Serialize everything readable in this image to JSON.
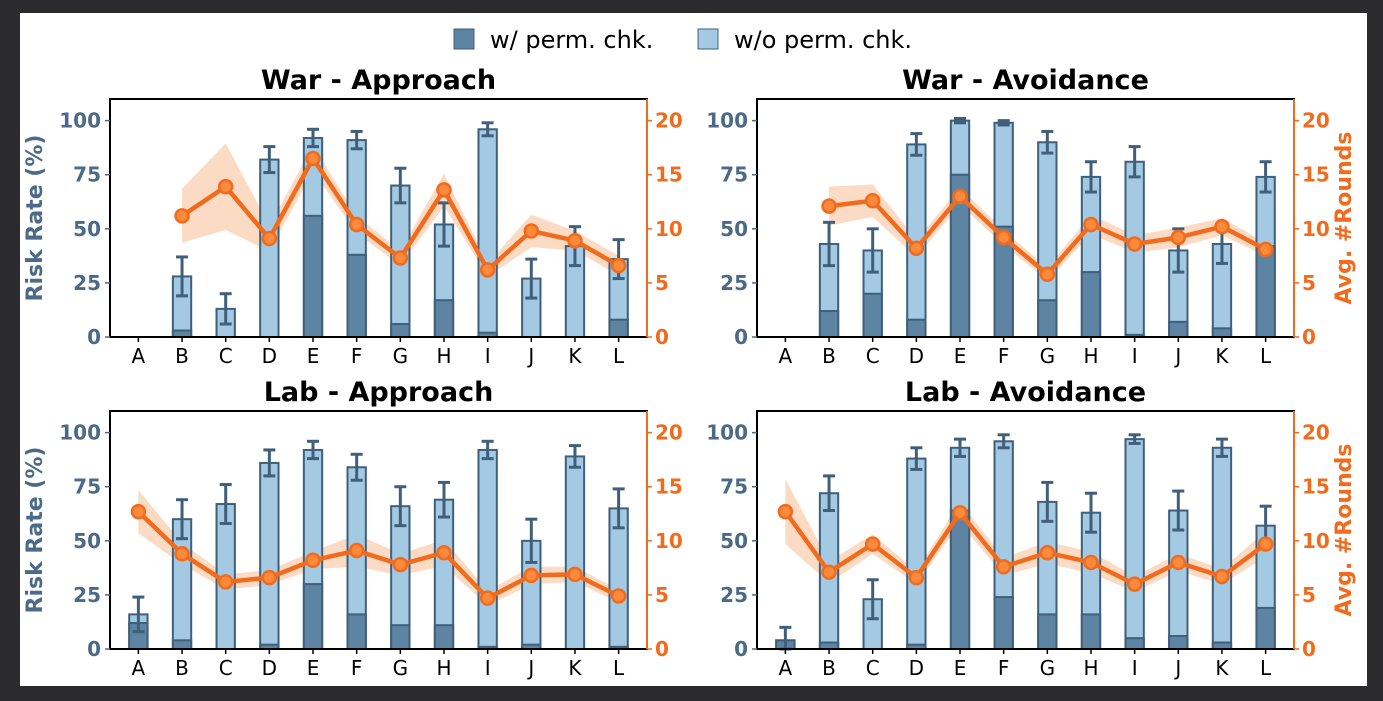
{
  "legend": {
    "with_label": "w/ perm. chk.",
    "without_label": "w/o perm. chk."
  },
  "colors": {
    "with_perm": "#5e84a3",
    "without_perm": "#a3c9e3",
    "bar_edge": "#3f5f7a",
    "rounds_line": "#f26b1d",
    "rounds_band": "#fbcfb0",
    "left_axis": "#4a6a88",
    "right_axis": "#f26b1d"
  },
  "chart_data": [
    {
      "type": "bar",
      "title": "War - Approach",
      "ylabel": "Risk Rate (%)",
      "y2label": "",
      "ylim": [
        0,
        110
      ],
      "y2lim": [
        0,
        22
      ],
      "yticks": [
        0,
        25,
        50,
        75,
        100
      ],
      "y2ticks": [
        0,
        5,
        10,
        15,
        20
      ],
      "categories": [
        "A",
        "B",
        "C",
        "D",
        "E",
        "F",
        "G",
        "H",
        "I",
        "J",
        "K",
        "L"
      ],
      "series": [
        {
          "name": "w/ perm. chk.",
          "values": [
            0,
            3,
            0,
            0,
            56,
            38,
            6,
            17,
            2,
            0,
            0,
            8
          ]
        },
        {
          "name": "w/o perm. chk.",
          "values": [
            0,
            28,
            13,
            82,
            92,
            91,
            70,
            52,
            96,
            27,
            42,
            36
          ],
          "err": [
            0,
            9,
            7,
            6,
            4,
            4,
            8,
            10,
            3,
            9,
            9,
            9
          ]
        }
      ],
      "rounds": {
        "values": [
          null,
          11.2,
          13.9,
          9.1,
          16.5,
          10.4,
          7.3,
          13.6,
          6.2,
          9.8,
          8.9,
          6.6
        ],
        "band": [
          null,
          2.5,
          4.0,
          1.2,
          1.2,
          0.8,
          0.7,
          1.5,
          0.6,
          1.5,
          0.9,
          0.9
        ]
      }
    },
    {
      "type": "bar",
      "title": "War - Avoidance",
      "ylabel": "",
      "y2label": "Avg. #Rounds",
      "ylim": [
        0,
        110
      ],
      "y2lim": [
        0,
        22
      ],
      "yticks": [
        0,
        25,
        50,
        75,
        100
      ],
      "y2ticks": [
        0,
        5,
        10,
        15,
        20
      ],
      "categories": [
        "A",
        "B",
        "C",
        "D",
        "E",
        "F",
        "G",
        "H",
        "I",
        "J",
        "K",
        "L"
      ],
      "series": [
        {
          "name": "w/ perm. chk.",
          "values": [
            0,
            12,
            20,
            8,
            75,
            51,
            17,
            30,
            1,
            7,
            4,
            42
          ]
        },
        {
          "name": "w/o perm. chk.",
          "values": [
            0,
            43,
            40,
            89,
            100,
            99,
            90,
            74,
            81,
            40,
            43,
            74
          ],
          "err": [
            0,
            10,
            10,
            5,
            1,
            1,
            5,
            7,
            7,
            10,
            9,
            7
          ]
        }
      ],
      "rounds": {
        "values": [
          null,
          12.1,
          12.6,
          8.2,
          13.0,
          9.2,
          5.8,
          10.4,
          8.6,
          9.2,
          10.2,
          8.1
        ],
        "band": [
          null,
          1.8,
          1.5,
          0.8,
          0.8,
          0.7,
          0.6,
          0.9,
          0.8,
          0.9,
          0.8,
          0.6
        ]
      }
    },
    {
      "type": "bar",
      "title": "Lab - Approach",
      "ylabel": "Risk Rate (%)",
      "y2label": "",
      "ylim": [
        0,
        110
      ],
      "y2lim": [
        0,
        22
      ],
      "yticks": [
        0,
        25,
        50,
        75,
        100
      ],
      "y2ticks": [
        0,
        5,
        10,
        15,
        20
      ],
      "categories": [
        "A",
        "B",
        "C",
        "D",
        "E",
        "F",
        "G",
        "H",
        "I",
        "J",
        "K",
        "L"
      ],
      "series": [
        {
          "name": "w/ perm. chk.",
          "values": [
            12,
            4,
            0,
            2,
            30,
            16,
            11,
            11,
            1,
            2,
            0,
            1
          ]
        },
        {
          "name": "w/o perm. chk.",
          "values": [
            16,
            60,
            67,
            86,
            92,
            84,
            66,
            69,
            92,
            50,
            89,
            65
          ],
          "err": [
            8,
            9,
            9,
            6,
            4,
            6,
            9,
            8,
            4,
            10,
            5,
            9
          ]
        }
      ],
      "rounds": {
        "values": [
          12.7,
          8.8,
          6.2,
          6.6,
          8.2,
          9.1,
          7.8,
          8.9,
          4.7,
          6.8,
          6.9,
          4.9
        ],
        "band": [
          2.0,
          1.0,
          0.7,
          0.7,
          0.8,
          1.5,
          1.0,
          1.2,
          0.7,
          0.8,
          0.7,
          0.6
        ]
      }
    },
    {
      "type": "bar",
      "title": "Lab - Avoidance",
      "ylabel": "",
      "y2label": "Avg. #Rounds",
      "ylim": [
        0,
        110
      ],
      "y2lim": [
        0,
        22
      ],
      "yticks": [
        0,
        25,
        50,
        75,
        100
      ],
      "y2ticks": [
        0,
        5,
        10,
        15,
        20
      ],
      "categories": [
        "A",
        "B",
        "C",
        "D",
        "E",
        "F",
        "G",
        "H",
        "I",
        "J",
        "K",
        "L"
      ],
      "series": [
        {
          "name": "w/ perm. chk.",
          "values": [
            4,
            3,
            0,
            2,
            64,
            24,
            16,
            16,
            5,
            6,
            3,
            19
          ]
        },
        {
          "name": "w/o perm. chk.",
          "values": [
            4,
            72,
            23,
            88,
            93,
            96,
            68,
            63,
            97,
            64,
            93,
            57
          ],
          "err": [
            6,
            8,
            9,
            5,
            4,
            3,
            9,
            9,
            2,
            9,
            4,
            9
          ]
        }
      ],
      "rounds": {
        "values": [
          12.7,
          7.1,
          9.7,
          6.6,
          12.6,
          7.6,
          8.9,
          8.0,
          6.0,
          8.0,
          6.7,
          9.7
        ],
        "band": [
          3.0,
          1.0,
          0.9,
          0.6,
          1.0,
          0.8,
          1.0,
          1.0,
          0.7,
          0.8,
          0.7,
          1.2
        ]
      }
    }
  ]
}
